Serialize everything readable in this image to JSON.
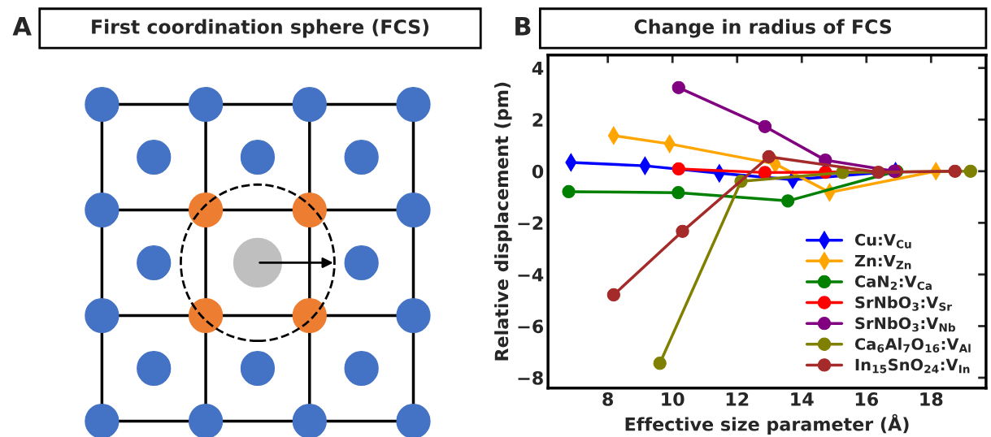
{
  "chart_data": [
    {
      "type": "other",
      "title": "First coordination sphere (FCS)",
      "annotations": [
        "A"
      ]
    },
    {
      "type": "line",
      "title": "Change in radius of FCS",
      "annotations": [
        "B"
      ],
      "xlabel": "Effective size parameter (Å)",
      "ylabel": "Relative displacement (pm)",
      "xlim": [
        6.15,
        19.7
      ],
      "ylim": [
        -8.4,
        4.5
      ],
      "xticks": [
        8,
        10,
        12,
        14,
        16,
        18
      ],
      "yticks": [
        {
          "value": -8,
          "label": "−8"
        },
        {
          "value": -6,
          "label": "−6"
        },
        {
          "value": -4,
          "label": "−4"
        },
        {
          "value": -2,
          "label": "−2"
        },
        0,
        2,
        4
      ],
      "grid": false,
      "legend": "bottom right",
      "line_style": "solid",
      "series": [
        {
          "name": "Cu:V$_{Cu}$",
          "color": "#0000ff",
          "marker": "diamond",
          "x": [
            6.86,
            9.15,
            11.45,
            13.72,
            16.9
          ],
          "values": [
            0.34,
            0.21,
            -0.08,
            -0.33,
            0
          ]
        },
        {
          "name": "Zn:V$_{Zn}$",
          "color": "#ffa500",
          "marker": "diamond",
          "x": [
            8.18,
            9.91,
            13.18,
            14.86,
            18.15
          ],
          "values": [
            1.38,
            1.06,
            0.28,
            -0.82,
            0
          ]
        },
        {
          "name": "CaN$_{2}$:V$_{Ca}$",
          "color": "#008000",
          "marker": "circle",
          "x": [
            6.79,
            10.18,
            13.57,
            16.94
          ],
          "values": [
            -0.79,
            -0.83,
            -1.15,
            0
          ]
        },
        {
          "name": "SrNbO$_{3}$:V$_{Sr}$",
          "color": "#ff0000",
          "marker": "circle",
          "x": [
            10.19,
            12.86,
            14.73,
            16.9
          ],
          "values": [
            0.09,
            -0.05,
            -0.04,
            0
          ]
        },
        {
          "name": "SrNbO$_{3}$:V$_{Nb}$",
          "color": "#800080",
          "marker": "circle",
          "x": [
            10.19,
            12.86,
            14.73,
            16.86
          ],
          "values": [
            3.24,
            1.73,
            0.43,
            0
          ]
        },
        {
          "name": "Ca$_{6}$Al$_{7}$O$_{16}$:V$_{Al}$",
          "color": "#808000",
          "marker": "circle",
          "x": [
            9.61,
            12.12,
            15.26,
            19.22
          ],
          "values": [
            -7.44,
            -0.39,
            -0.05,
            0
          ]
        },
        {
          "name": "In$_{15}$SnO$_{24}$:V$_{In}$",
          "color": "#a52a2a",
          "marker": "circle",
          "x": [
            8.18,
            10.31,
            12.98,
            16.37,
            18.74
          ],
          "values": [
            -4.79,
            -2.33,
            0.56,
            -0.04,
            0
          ]
        }
      ]
    }
  ]
}
